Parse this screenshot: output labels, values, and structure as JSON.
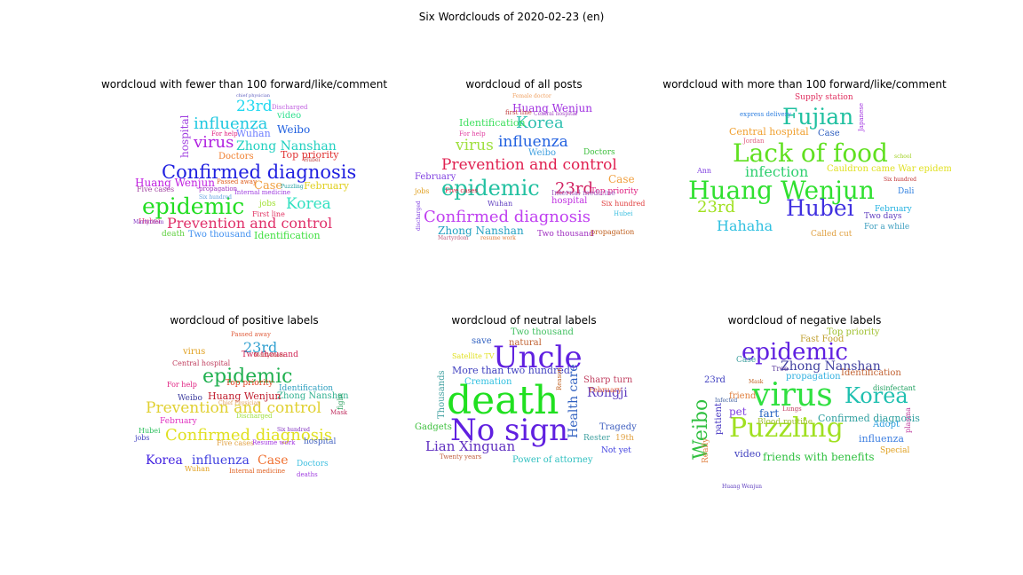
{
  "figure": {
    "title": "Six Wordclouds of 2020-02-23 (en)"
  },
  "panels": [
    {
      "title": "wordcloud with fewer than 100 forward/like/comment",
      "words": [
        {
          "text": "Confirmed diagnosis",
          "color": "#2020e0"
        },
        {
          "text": "epidemic",
          "color": "#22dd22"
        },
        {
          "text": "Prevention and control",
          "color": "#e0306a"
        },
        {
          "text": "influenza",
          "color": "#20c8e0"
        },
        {
          "text": "virus",
          "color": "#b020e0"
        },
        {
          "text": "Zhong Nanshan",
          "color": "#20d0c0"
        },
        {
          "text": "23rd",
          "color": "#20d8f0"
        },
        {
          "text": "Huang Wenjun",
          "color": "#c020e0"
        },
        {
          "text": "Korea",
          "color": "#30e0c0"
        },
        {
          "text": "Weibo",
          "color": "#2060e0"
        },
        {
          "text": "Wuhan",
          "color": "#7080ff"
        },
        {
          "text": "Case",
          "color": "#f0a040"
        },
        {
          "text": "February",
          "color": "#e0d020"
        },
        {
          "text": "Doctors",
          "color": "#f08030"
        },
        {
          "text": "Top priority",
          "color": "#e03030"
        },
        {
          "text": "Identification",
          "color": "#40e040"
        },
        {
          "text": "Two thousand",
          "color": "#4090f0"
        },
        {
          "text": "hospital",
          "color": "#a040e0"
        },
        {
          "text": "video",
          "color": "#30e090"
        },
        {
          "text": "death",
          "color": "#60d040"
        },
        {
          "text": "jobs",
          "color": "#a0e030"
        },
        {
          "text": "Hubei",
          "color": "#e04080"
        },
        {
          "text": "Discharged",
          "color": "#c060e0"
        },
        {
          "text": "Five cases",
          "color": "#a040a0"
        },
        {
          "text": "First line",
          "color": "#e03060"
        },
        {
          "text": "Martyrdom",
          "color": "#8030c0"
        },
        {
          "text": "propagation",
          "color": "#a030c0"
        },
        {
          "text": "Internal medicine",
          "color": "#a040e0"
        },
        {
          "text": "Passed away",
          "color": "#e06020"
        },
        {
          "text": "Six hundred",
          "color": "#60a0e0"
        },
        {
          "text": "For help",
          "color": "#e02080"
        },
        {
          "text": "Puzzling",
          "color": "#20a0a0"
        },
        {
          "text": "chief physician",
          "color": "#6060c0"
        },
        {
          "text": "Hubei",
          "color": "#c04040"
        }
      ]
    },
    {
      "title": "wordcloud of all posts",
      "words": [
        {
          "text": "Prevention and control",
          "color": "#e02050"
        },
        {
          "text": "Confirmed diagnosis",
          "color": "#c040f0"
        },
        {
          "text": "epidemic",
          "color": "#20c0a0"
        },
        {
          "text": "influenza",
          "color": "#2060e0"
        },
        {
          "text": "virus",
          "color": "#a0e040"
        },
        {
          "text": "Korea",
          "color": "#30c0b0"
        },
        {
          "text": "23rd",
          "color": "#d02060"
        },
        {
          "text": "Zhong Nanshan",
          "color": "#20a0c0"
        },
        {
          "text": "Huang Wenjun",
          "color": "#a030e0"
        },
        {
          "text": "Identification",
          "color": "#40e060"
        },
        {
          "text": "February",
          "color": "#8040e0"
        },
        {
          "text": "Case",
          "color": "#f0a040"
        },
        {
          "text": "Top priority",
          "color": "#e02080"
        },
        {
          "text": "hospital",
          "color": "#c030e0"
        },
        {
          "text": "Weibo",
          "color": "#40a0e0"
        },
        {
          "text": "Two thousand",
          "color": "#a030c0"
        },
        {
          "text": "Six hundred",
          "color": "#e04040"
        },
        {
          "text": "Wuhan",
          "color": "#6040c0"
        },
        {
          "text": "Doctors",
          "color": "#40c040"
        },
        {
          "text": "Internal medicine",
          "color": "#a060c0"
        },
        {
          "text": "propagation",
          "color": "#c06020"
        },
        {
          "text": "Hubei",
          "color": "#40c0e0"
        },
        {
          "text": "For help",
          "color": "#e040a0"
        },
        {
          "text": "Female doctor",
          "color": "#f0a060"
        },
        {
          "text": "Central hospital",
          "color": "#a040c0"
        },
        {
          "text": "first line",
          "color": "#c04040"
        },
        {
          "text": "jobs",
          "color": "#e0a020"
        },
        {
          "text": "Martyrdom",
          "color": "#c06080"
        },
        {
          "text": "resume work",
          "color": "#e08040"
        },
        {
          "text": "discharged",
          "color": "#8040e0"
        },
        {
          "text": "Five cases",
          "color": "#e02040"
        }
      ]
    },
    {
      "title": "wordcloud with more than 100 forward/like/comment",
      "words": [
        {
          "text": "Huang Wenjun",
          "color": "#30e030"
        },
        {
          "text": "Lack of food",
          "color": "#60e020"
        },
        {
          "text": "Fujian",
          "color": "#20c0a0"
        },
        {
          "text": "Hubei",
          "color": "#4030e0"
        },
        {
          "text": "infection",
          "color": "#30d070"
        },
        {
          "text": "Hahaha",
          "color": "#30c0e0"
        },
        {
          "text": "23rd",
          "color": "#a0e020"
        },
        {
          "text": "Central hospital",
          "color": "#f0a030"
        },
        {
          "text": "Case",
          "color": "#3060c0"
        },
        {
          "text": "Cauldron came War epidemic",
          "color": "#e0e020"
        },
        {
          "text": "Supply station",
          "color": "#e03060"
        },
        {
          "text": "express delivery",
          "color": "#3080e0"
        },
        {
          "text": "Two days",
          "color": "#6040c0"
        },
        {
          "text": "For a while",
          "color": "#40a0c0"
        },
        {
          "text": "February",
          "color": "#20b0e0"
        },
        {
          "text": "Dali",
          "color": "#3080e0"
        },
        {
          "text": "Called cut",
          "color": "#e0a040"
        },
        {
          "text": "Japanese",
          "color": "#a030e0"
        },
        {
          "text": "Six hundred",
          "color": "#c03030"
        },
        {
          "text": "Jordan",
          "color": "#e06080"
        },
        {
          "text": "school",
          "color": "#a0d020"
        },
        {
          "text": "Ann",
          "color": "#8040e0"
        }
      ]
    },
    {
      "title": "wordcloud of positive labels",
      "words": [
        {
          "text": "epidemic",
          "color": "#20b050"
        },
        {
          "text": "Confirmed diagnosis",
          "color": "#e0e020"
        },
        {
          "text": "Prevention and control",
          "color": "#e0d030"
        },
        {
          "text": "Korea",
          "color": "#4020e0"
        },
        {
          "text": "influenza",
          "color": "#4040e0"
        },
        {
          "text": "Case",
          "color": "#f07030"
        },
        {
          "text": "23rd",
          "color": "#30a0d0"
        },
        {
          "text": "Zhong Nanshan",
          "color": "#30b090"
        },
        {
          "text": "Huang Wenjun",
          "color": "#c02030"
        },
        {
          "text": "Identification",
          "color": "#30a0c0"
        },
        {
          "text": "Top priority",
          "color": "#e04020"
        },
        {
          "text": "Weibo",
          "color": "#4040a0"
        },
        {
          "text": "virus",
          "color": "#e0a020"
        },
        {
          "text": "Two thousand",
          "color": "#d02050"
        },
        {
          "text": "February",
          "color": "#e030c0"
        },
        {
          "text": "Central hospital",
          "color": "#c04060"
        },
        {
          "text": "hospital",
          "color": "#4060c0"
        },
        {
          "text": "Doctors",
          "color": "#40c0e0"
        },
        {
          "text": "Internal medicine",
          "color": "#e06020"
        },
        {
          "text": "Five cases",
          "color": "#e0a040"
        },
        {
          "text": "Resume work",
          "color": "#a030e0"
        },
        {
          "text": "Wuhan",
          "color": "#e0a020"
        },
        {
          "text": "jobs",
          "color": "#4040c0"
        },
        {
          "text": "Hubei",
          "color": "#30c060"
        },
        {
          "text": "For help",
          "color": "#e02080"
        },
        {
          "text": "Discharged",
          "color": "#a0e040"
        },
        {
          "text": "Passed away",
          "color": "#e06040"
        },
        {
          "text": "Martyrdom",
          "color": "#c04040"
        },
        {
          "text": "Six hundred",
          "color": "#8030c0"
        },
        {
          "text": "Chief Physician",
          "color": "#e0a060"
        },
        {
          "text": "deaths",
          "color": "#a040e0"
        },
        {
          "text": "Mask",
          "color": "#c03060"
        },
        {
          "text": "fight",
          "color": "#30a060"
        }
      ]
    },
    {
      "title": "wordcloud of neutral labels",
      "words": [
        {
          "text": "death",
          "color": "#20e020"
        },
        {
          "text": "Uncle",
          "color": "#6020e0"
        },
        {
          "text": "No sign",
          "color": "#6020e0"
        },
        {
          "text": "Lian Xinguan",
          "color": "#6030c0"
        },
        {
          "text": "Health care",
          "color": "#3060c0"
        },
        {
          "text": "Rongji",
          "color": "#6040c0"
        },
        {
          "text": "More than two hundred",
          "color": "#4040c0"
        },
        {
          "text": "Two thousand",
          "color": "#40c060"
        },
        {
          "text": "natural",
          "color": "#c06030"
        },
        {
          "text": "Sharp turn",
          "color": "#c04060"
        },
        {
          "text": "Tragedy",
          "color": "#4060c0"
        },
        {
          "text": "Thousands",
          "color": "#40a0a0"
        },
        {
          "text": "Satellite TV",
          "color": "#e0e020"
        },
        {
          "text": "Cremation",
          "color": "#30c0e0"
        },
        {
          "text": "save",
          "color": "#3060c0"
        },
        {
          "text": "Gadgets",
          "color": "#40c040"
        },
        {
          "text": "February",
          "color": "#e06040"
        },
        {
          "text": "Reason",
          "color": "#c06020"
        },
        {
          "text": "Rester",
          "color": "#40a0a0"
        },
        {
          "text": "19th",
          "color": "#e0a040"
        },
        {
          "text": "Not yet",
          "color": "#4040e0"
        },
        {
          "text": "Power of attorney",
          "color": "#30c0c0"
        },
        {
          "text": "Twenty years",
          "color": "#c06040"
        }
      ]
    },
    {
      "title": "wordcloud of negative labels",
      "words": [
        {
          "text": "virus",
          "color": "#30e040"
        },
        {
          "text": "Puzzling",
          "color": "#a0e020"
        },
        {
          "text": "epidemic",
          "color": "#6020e0"
        },
        {
          "text": "Korea",
          "color": "#20c0b0"
        },
        {
          "text": "Weibo",
          "color": "#30c040"
        },
        {
          "text": "Zhong Nanshan",
          "color": "#4040a0"
        },
        {
          "text": "friends with benefits",
          "color": "#30c040"
        },
        {
          "text": "Confirmed diagnosis",
          "color": "#30a0a0"
        },
        {
          "text": "influenza",
          "color": "#4080e0"
        },
        {
          "text": "Identification",
          "color": "#c06030"
        },
        {
          "text": "propagation",
          "color": "#30b0e0"
        },
        {
          "text": "Top priority",
          "color": "#a0c030"
        },
        {
          "text": "Fast Food",
          "color": "#c0a030"
        },
        {
          "text": "patient",
          "color": "#4030c0"
        },
        {
          "text": "Adopt",
          "color": "#30a0e0"
        },
        {
          "text": "23rd",
          "color": "#4040c0"
        },
        {
          "text": "Case",
          "color": "#40a0a0"
        },
        {
          "text": "friend",
          "color": "#e08040"
        },
        {
          "text": "pet",
          "color": "#8040e0"
        },
        {
          "text": "fart",
          "color": "#2060c0"
        },
        {
          "text": "Blood routine",
          "color": "#a0c030"
        },
        {
          "text": "video",
          "color": "#4040c0"
        },
        {
          "text": "Tree",
          "color": "#6040a0"
        },
        {
          "text": "disinfectant",
          "color": "#20a060"
        },
        {
          "text": "plasma",
          "color": "#c040a0"
        },
        {
          "text": "Special",
          "color": "#e0a020"
        },
        {
          "text": "Really",
          "color": "#e08040"
        },
        {
          "text": "Mask",
          "color": "#c06020"
        },
        {
          "text": "Huang Wenjun",
          "color": "#6040c0"
        },
        {
          "text": "Infected",
          "color": "#4060a0"
        },
        {
          "text": "Lungs",
          "color": "#c04060"
        }
      ]
    }
  ]
}
